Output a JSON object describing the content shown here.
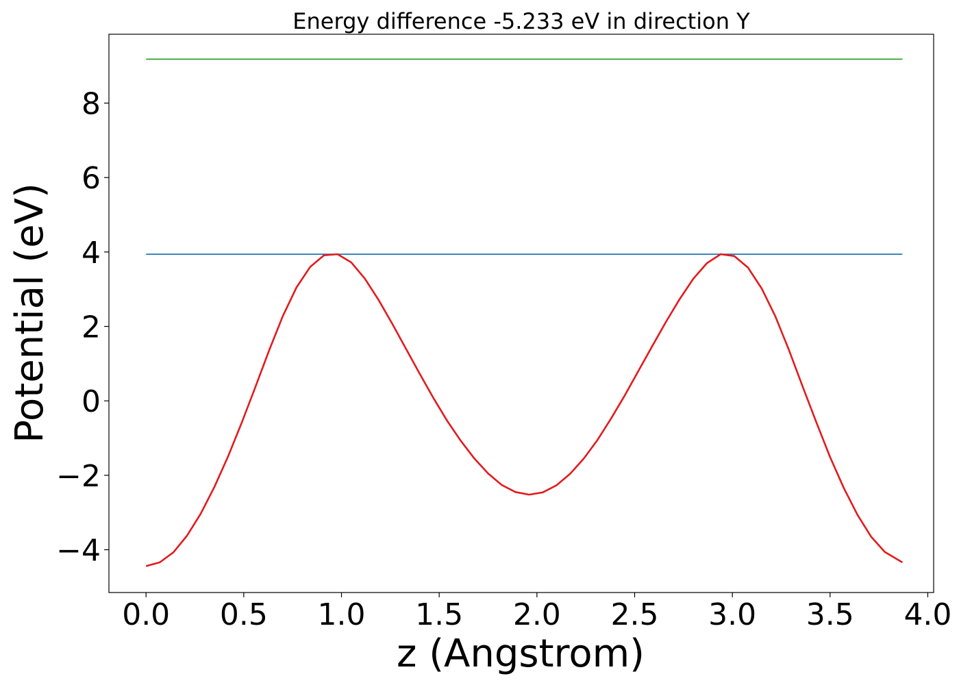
{
  "chart_data": {
    "type": "line",
    "title": "Energy difference -5.233 eV in direction Y",
    "xlabel": "z (Angstrom)",
    "ylabel": "Potential (eV)",
    "xlim": [
      -0.19,
      4.03
    ],
    "ylim": [
      -5.15,
      9.85
    ],
    "xticks": [
      0.0,
      0.5,
      1.0,
      1.5,
      2.0,
      2.5,
      3.0,
      3.5,
      4.0
    ],
    "xtick_labels": [
      "0.0",
      "0.5",
      "1.0",
      "1.5",
      "2.0",
      "2.5",
      "3.0",
      "3.5",
      "4.0"
    ],
    "yticks": [
      -4,
      -2,
      0,
      2,
      4,
      6,
      8
    ],
    "ytick_labels": [
      "−4",
      "−2",
      "0",
      "2",
      "4",
      "6",
      "8"
    ],
    "grid": false,
    "series": [
      {
        "color": "#2ca02c",
        "x": [
          0.0,
          3.87
        ],
        "y": [
          9.18,
          9.18
        ]
      },
      {
        "color": "#1f77b4",
        "x": [
          0.0,
          3.87
        ],
        "y": [
          3.94,
          3.94
        ]
      },
      {
        "color": "#e31a1c",
        "x": [
          0.0,
          0.07,
          0.14,
          0.21,
          0.28,
          0.35,
          0.42,
          0.49,
          0.56,
          0.63,
          0.7,
          0.77,
          0.84,
          0.91,
          0.98,
          1.05,
          1.12,
          1.19,
          1.26,
          1.33,
          1.4,
          1.47,
          1.54,
          1.61,
          1.68,
          1.75,
          1.82,
          1.89,
          1.96,
          2.03,
          2.1,
          2.17,
          2.24,
          2.31,
          2.38,
          2.45,
          2.52,
          2.59,
          2.66,
          2.73,
          2.8,
          2.87,
          2.94,
          3.01,
          3.08,
          3.15,
          3.22,
          3.29,
          3.36,
          3.43,
          3.5,
          3.57,
          3.64,
          3.71,
          3.78,
          3.87
        ],
        "y": [
          -4.44,
          -4.34,
          -4.07,
          -3.62,
          -3.03,
          -2.31,
          -1.49,
          -0.58,
          0.38,
          1.36,
          2.28,
          3.05,
          3.6,
          3.91,
          3.94,
          3.72,
          3.28,
          2.71,
          2.07,
          1.4,
          0.73,
          0.08,
          -0.53,
          -1.07,
          -1.55,
          -1.95,
          -2.26,
          -2.45,
          -2.52,
          -2.46,
          -2.27,
          -1.96,
          -1.55,
          -1.05,
          -0.47,
          0.15,
          0.81,
          1.47,
          2.12,
          2.73,
          3.28,
          3.7,
          3.94,
          3.89,
          3.58,
          3.02,
          2.27,
          1.36,
          0.38,
          -0.58,
          -1.51,
          -2.34,
          -3.06,
          -3.65,
          -4.06,
          -4.34
        ]
      }
    ]
  }
}
